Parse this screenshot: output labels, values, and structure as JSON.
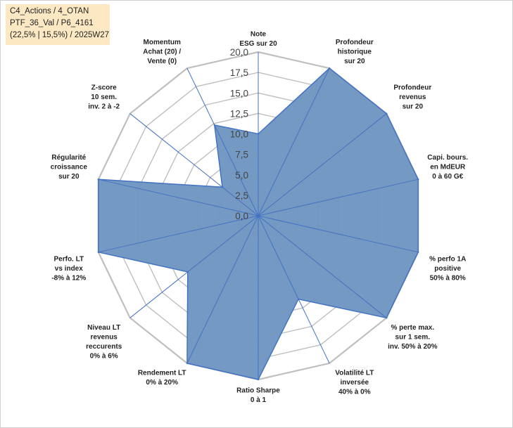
{
  "info_box": {
    "lines": [
      "C4_Actions / 4_OTAN",
      "PTF_36_Val / P6_4161",
      "(22,5% | 15,5%) / 2025W27"
    ],
    "background": "#fce9c4"
  },
  "chart_data": {
    "type": "radar",
    "title": "",
    "r_range": [
      0,
      20
    ],
    "r_ticks": [
      "0,0",
      "2,5",
      "5,0",
      "7,5",
      "10,0",
      "12,5",
      "15,0",
      "17,5",
      "20,0"
    ],
    "grid": true,
    "fill_color": "#7096c0",
    "stroke_color": "#4472c4",
    "grid_color": "#bfbfbf",
    "categories": [
      [
        "Note",
        "ESG sur 20"
      ],
      [
        "Profondeur",
        "historique",
        "sur 20"
      ],
      [
        "Profondeur",
        "revenus",
        "sur 20"
      ],
      [
        "Capi. bours.",
        "en MdEUR",
        "0 à 60 G€"
      ],
      [
        "% perfo 1A",
        "positive",
        "50% à 80%"
      ],
      [
        "% perte max.",
        "sur 1 sem.",
        "inv. 50% à 20%"
      ],
      [
        "Volatilité LT",
        "inversée",
        "40% à 0%"
      ],
      [
        "Ratio Sharpe",
        "0 à 1"
      ],
      [
        "Rendement LT",
        "0% à 20%"
      ],
      [
        "Niveau LT",
        "revenus",
        "reccurents",
        "0% à 6%"
      ],
      [
        "Perfo. LT",
        "vs index",
        "-8% à 12%"
      ],
      [
        "Régularité",
        "croissance",
        "sur 20"
      ],
      [
        "Z-score",
        "10 sem.",
        "inv. 2 à -2"
      ],
      [
        "Momentum",
        "Achat (20) /",
        "Vente (0)"
      ]
    ],
    "values": [
      10.0,
      20.0,
      20.0,
      20.0,
      20.0,
      20.0,
      11.3,
      20.0,
      20.0,
      11.0,
      20.0,
      20.0,
      5.6,
      12.3
    ]
  }
}
